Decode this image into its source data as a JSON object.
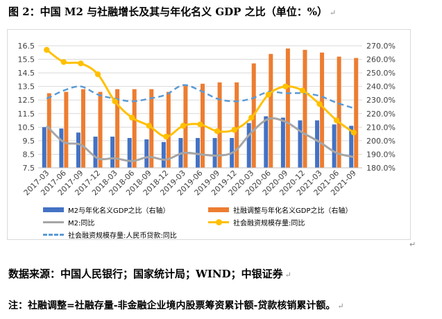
{
  "figure": {
    "title": "图 2：中国 M2 与社融增长及其与年化名义 GDP 之比（单位：%）",
    "source": "数据来源：中国人民银行；国家统计局；WIND；中银证券",
    "note": "注：社融调整=社融存量-非金融企业境内股票筹资累计额-贷款核销累计额。",
    "paragraph_mark": "↵"
  },
  "chart_data": {
    "type": "bar",
    "categories": [
      "2017-03",
      "2017-06",
      "2017-09",
      "2017-12",
      "2018-03",
      "2018-06",
      "2018-09",
      "2018-12",
      "2019-03",
      "2019-06",
      "2019-09",
      "2019-12",
      "2020-03",
      "2020-06",
      "2020-09",
      "2020-12",
      "2021-03",
      "2021-06",
      "2021-09"
    ],
    "y_left": {
      "ylim": [
        7.5,
        16.5
      ],
      "ticks": [
        "16.5",
        "15.5",
        "14.5",
        "13.5",
        "12.5",
        "11.5",
        "10.5",
        "9.5",
        "8.5",
        "7.5"
      ]
    },
    "y_right": {
      "ylim": [
        180,
        270
      ],
      "ticks": [
        "270.0%",
        "260.0%",
        "250.0%",
        "240.0%",
        "230.0%",
        "220.0%",
        "210.0%",
        "200.0%",
        "190.0%",
        "180.0%"
      ]
    },
    "series": [
      {
        "name": "M2与年化名义GDP之比（右轴）",
        "type": "bar",
        "axis": "right",
        "color": "#4472c4",
        "values": [
          210,
          209,
          206,
          203,
          203,
          202,
          201,
          199,
          202,
          202,
          202,
          202,
          213,
          218,
          217,
          215,
          215,
          212,
          211
        ]
      },
      {
        "name": "社融调整与年化名义GDP之比（右轴）",
        "type": "bar",
        "axis": "right",
        "color": "#ed7d31",
        "values": [
          235,
          236,
          238,
          236,
          238,
          238,
          238,
          236,
          241,
          242,
          243,
          243,
          257,
          264,
          268,
          267,
          265,
          262,
          261
        ]
      },
      {
        "name": "M2:同比",
        "type": "line",
        "axis": "left",
        "color": "#a6a6a6",
        "values": [
          10.6,
          9.4,
          9.2,
          8.2,
          8.2,
          8.0,
          8.3,
          8.1,
          8.6,
          8.5,
          8.4,
          8.7,
          10.1,
          11.1,
          10.9,
          10.1,
          9.4,
          8.6,
          8.3
        ]
      },
      {
        "name": "社会融资规模存量:同比",
        "type": "line-marker",
        "axis": "left",
        "color": "#ffc000",
        "values": [
          16.2,
          15.3,
          15.2,
          14.4,
          12.4,
          11.2,
          10.6,
          9.8,
          10.6,
          10.7,
          10.2,
          10.3,
          11.2,
          12.9,
          13.5,
          13.2,
          12.2,
          11.0,
          10.1
        ]
      },
      {
        "name": "社会融资规模存量:人民币贷款:同比",
        "type": "dashed-line",
        "axis": "left",
        "color": "#5b9bd5",
        "values": [
          12.6,
          13.2,
          13.5,
          12.9,
          12.6,
          12.4,
          12.6,
          12.9,
          13.6,
          13.2,
          12.6,
          12.4,
          12.6,
          13.1,
          13.0,
          13.0,
          12.8,
          12.3,
          11.9
        ]
      }
    ]
  }
}
